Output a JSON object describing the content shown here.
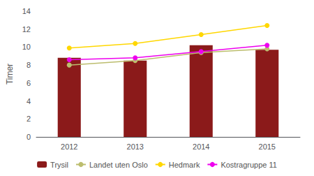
{
  "chart_data": {
    "type": "bar",
    "categories": [
      "2012",
      "2013",
      "2014",
      "2015"
    ],
    "ylabel": "Timer",
    "ylim": [
      0,
      14
    ],
    "yticks": [
      0,
      2,
      4,
      6,
      8,
      10,
      12,
      14
    ],
    "grid": false,
    "legend": "bottom",
    "series": [
      {
        "name": "Trysil",
        "type": "bar",
        "color": "#8B1A1A",
        "values": [
          8.8,
          8.5,
          10.2,
          9.7
        ]
      },
      {
        "name": "Landet uten Oslo",
        "type": "line",
        "marker": "circle",
        "color": "#BCBD6E",
        "values": [
          8.0,
          8.5,
          9.4,
          9.8
        ]
      },
      {
        "name": "Hedmark",
        "type": "line",
        "marker": "circle",
        "color": "#FFD700",
        "values": [
          9.9,
          10.4,
          11.4,
          12.4
        ]
      },
      {
        "name": "Kostragruppe 11",
        "type": "line",
        "marker": "circle",
        "color": "#EE00EE",
        "values": [
          8.6,
          8.8,
          9.5,
          10.2
        ]
      }
    ]
  }
}
